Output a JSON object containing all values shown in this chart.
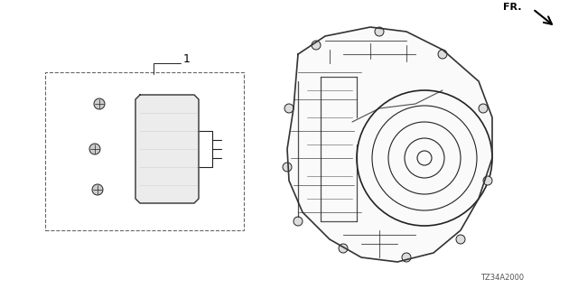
{
  "title": "",
  "background_color": "#ffffff",
  "border_color": "#888888",
  "text_color": "#000000",
  "part_number": "TZ34A2000",
  "fr_label": "FR.",
  "item_number": "1",
  "fig_size": [
    6.4,
    3.2
  ],
  "dpi": 100
}
